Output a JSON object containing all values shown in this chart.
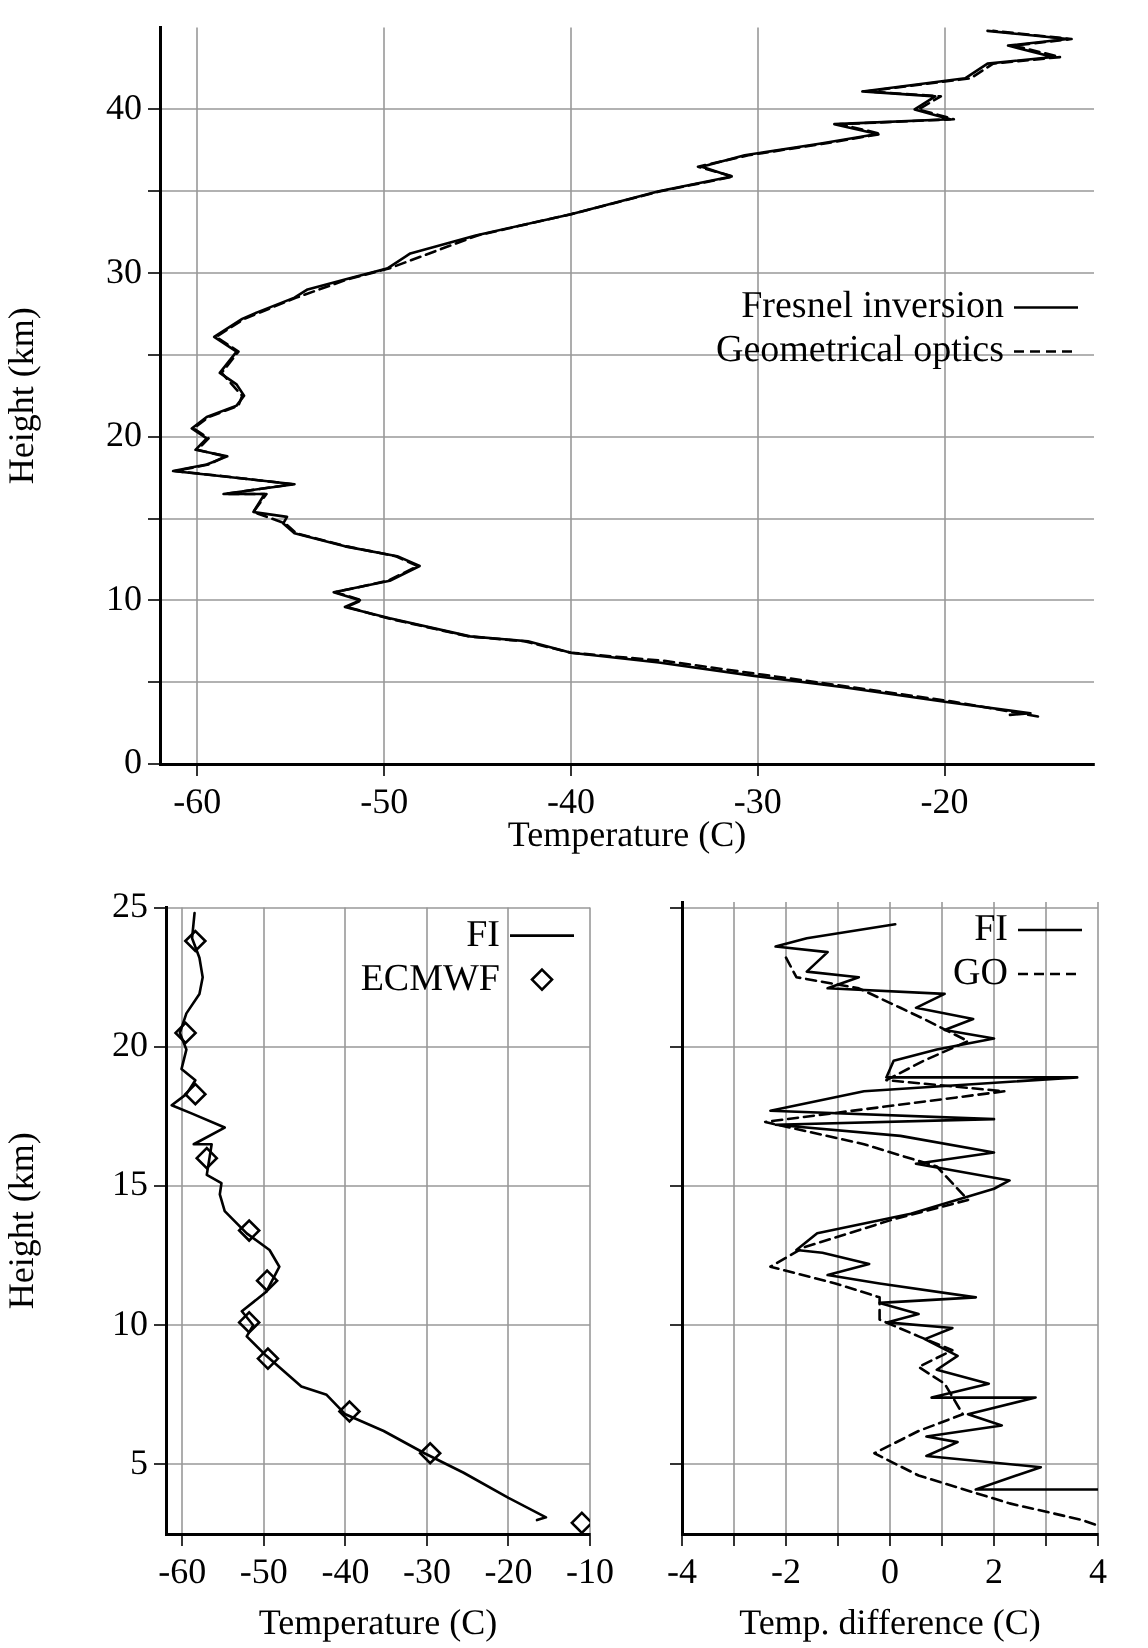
{
  "chart_data": [
    {
      "type": "line",
      "xlabel": "Temperature (C)",
      "ylabel": "Height (km)",
      "xlim": [
        -62,
        -12
      ],
      "xticks": [
        -60,
        -50,
        -40,
        -30,
        -20
      ],
      "ylim": [
        0,
        45
      ],
      "yticks": [
        0,
        {
          "value": 5,
          "label": null
        },
        10,
        {
          "value": 15,
          "label": null
        },
        20,
        {
          "value": 25,
          "label": null
        },
        30,
        {
          "value": 35,
          "label": null
        },
        40
      ],
      "grid": true,
      "legend": "right",
      "series": [
        {
          "name": "Fresnel inversion",
          "color": "#000000",
          "line_style": "solid",
          "x": [
            -16.5,
            -15.4,
            -20,
            -25.5,
            -30.3,
            -35.3,
            -40,
            -42.3,
            -45.4,
            -49.7,
            -52.1,
            -51.3,
            -52.7,
            -49.7,
            -48.1,
            -49.3,
            -52.1,
            -54.8,
            -55.4,
            -55.2,
            -57,
            -56.4,
            -58.6,
            -54.8,
            -58.8,
            -61.3,
            -59.5,
            -58.4,
            -60.1,
            -59.5,
            -60.3,
            -59.5,
            -57.9,
            -57.5,
            -57.9,
            -58.8,
            -57.9,
            -59.1,
            -57.6,
            -56.8,
            -54.8,
            -54.1,
            -52.1,
            -49.8,
            -48.6,
            -45.1,
            -40,
            -35.3,
            -31.4,
            -33,
            -30.7,
            -26.7,
            -23.6,
            -25.9,
            -19.7,
            -21.6,
            -20.5,
            -24.4,
            -18.9,
            -17.7,
            -14.2,
            -16.6,
            -13.4,
            -17.7
          ],
          "values": [
            3.0,
            3.1,
            3.8,
            4.7,
            5.4,
            6.2,
            6.8,
            7.5,
            7.8,
            8.9,
            9.6,
            10.0,
            10.5,
            11.2,
            12.1,
            12.7,
            13.3,
            14.1,
            14.7,
            15.1,
            15.4,
            16.5,
            16.5,
            17.1,
            17.6,
            17.9,
            18.3,
            18.8,
            19.2,
            19.9,
            20.5,
            21.2,
            21.9,
            22.5,
            23.2,
            23.9,
            25.2,
            26.1,
            27.2,
            27.6,
            28.5,
            29.0,
            29.6,
            30.3,
            31.2,
            32.3,
            33.6,
            35.0,
            35.9,
            36.5,
            37.2,
            37.9,
            38.5,
            39.1,
            39.4,
            40.0,
            40.8,
            41.1,
            41.9,
            42.8,
            43.2,
            43.9,
            44.3,
            44.8
          ]
        },
        {
          "name": "Geometrical optics",
          "color": "#000000",
          "line_style": "dashed",
          "x": [
            -15,
            -19.5,
            -25,
            -30,
            -35,
            -40,
            -42.5,
            -45.5,
            -49.8,
            -52,
            -51.2,
            -52.6,
            -49.8,
            -48.2,
            -49.4,
            -52,
            -54.7,
            -55.3,
            -57,
            -56.3,
            -58.5,
            -54.9,
            -58.7,
            -61.2,
            -59.4,
            -58.5,
            -60,
            -59.4,
            -60.2,
            -59.4,
            -57.8,
            -57.6,
            -58.7,
            -57.8,
            -59,
            -57.5,
            -54.7,
            -52,
            -49.7,
            -45,
            -40,
            -35.2,
            -31.3,
            -33.2,
            -30.5,
            -26.5,
            -23.4,
            -25.6,
            -19.5,
            -21.4,
            -20.2,
            -24.2,
            -18.6,
            -17.4,
            -13.8,
            -16.3,
            -13.2,
            -17.4
          ],
          "values": [
            2.9,
            3.8,
            4.7,
            5.5,
            6.3,
            6.8,
            7.5,
            7.8,
            8.9,
            9.6,
            10.0,
            10.5,
            11.2,
            12.1,
            12.7,
            13.3,
            14.1,
            14.7,
            15.4,
            16.5,
            16.5,
            17.1,
            17.6,
            17.9,
            18.3,
            18.8,
            19.2,
            19.9,
            20.5,
            21.2,
            21.9,
            22.5,
            23.9,
            25.2,
            26.1,
            27.2,
            28.5,
            29.6,
            30.3,
            32.3,
            33.6,
            35.0,
            35.9,
            36.5,
            37.2,
            37.9,
            38.5,
            39.1,
            39.4,
            40.0,
            40.8,
            41.1,
            41.9,
            42.8,
            43.2,
            43.9,
            44.3,
            44.8
          ]
        }
      ]
    },
    {
      "type": "line",
      "xlabel": "Temperature (C)",
      "ylabel": "Height (km)",
      "xlim": [
        -62,
        -10
      ],
      "xticks": [
        -60,
        -50,
        -40,
        -30,
        -20,
        -10
      ],
      "ylim": [
        2.5,
        25
      ],
      "yticks": [
        5,
        10,
        15,
        20,
        25
      ],
      "grid": true,
      "legend": "top right",
      "series": [
        {
          "name": "FI",
          "color": "#000000",
          "line_style": "solid",
          "x": [
            -16.5,
            -15.4,
            -20,
            -25.5,
            -30.3,
            -35.3,
            -40,
            -42.3,
            -45.4,
            -49.7,
            -52.1,
            -51.3,
            -52.7,
            -49.7,
            -48.1,
            -49.3,
            -52.1,
            -54.8,
            -55.4,
            -55.2,
            -57,
            -56.4,
            -58.6,
            -54.8,
            -58.8,
            -61.3,
            -59.5,
            -58.4,
            -60.1,
            -59.5,
            -60.3,
            -59.5,
            -57.9,
            -57.5,
            -57.9,
            -58.8,
            -58.5
          ],
          "values": [
            3.0,
            3.1,
            3.8,
            4.7,
            5.4,
            6.2,
            6.8,
            7.5,
            7.8,
            8.9,
            9.6,
            10.0,
            10.5,
            11.2,
            12.1,
            12.7,
            13.3,
            14.1,
            14.7,
            15.1,
            15.4,
            16.5,
            16.5,
            17.1,
            17.6,
            17.9,
            18.3,
            18.8,
            19.2,
            19.9,
            20.5,
            21.2,
            21.9,
            22.5,
            23.2,
            23.9,
            24.8
          ]
        },
        {
          "name": "ECMWF",
          "type": "scatter",
          "marker": "diamond",
          "color": "#000000",
          "x": [
            -58.4,
            -59.6,
            -58.4,
            -57,
            -51.8,
            -49.6,
            -51.8,
            -49.5,
            -39.5,
            -29.6,
            -11
          ],
          "values": [
            23.8,
            20.5,
            18.3,
            16.0,
            13.4,
            11.6,
            10.1,
            8.8,
            6.9,
            5.4,
            2.9
          ]
        }
      ]
    },
    {
      "type": "line",
      "xlabel": "Temp. difference (C)",
      "xlim": [
        -4,
        4
      ],
      "xticks": [
        -4,
        {
          "value": -3,
          "label": null
        },
        -2,
        {
          "value": -1,
          "label": null
        },
        0,
        {
          "value": 1,
          "label": null
        },
        2,
        {
          "value": 3,
          "label": null
        },
        4
      ],
      "ylim": [
        2.5,
        25.2
      ],
      "yticks": [
        5,
        10,
        15,
        20,
        25
      ],
      "tick_labels": "x",
      "grid": true,
      "legend": "top right",
      "series": [
        {
          "name": "FI",
          "color": "#000000",
          "line_style": "solid",
          "x": [
            0.1,
            -1.6,
            -2.2,
            -1.2,
            -1.6,
            -0.6,
            -1.2,
            1.05,
            0.5,
            1.6,
            1.05,
            2.0,
            0.9,
            0.07,
            -0.07,
            3.6,
            -0.5,
            -2.3,
            2.0,
            -2.2,
            0.2,
            2.0,
            0.5,
            2.3,
            2.0,
            0.4,
            -1.4,
            -1.8,
            -1.3,
            -0.4,
            -1.2,
            -0.2,
            1.65,
            -0.2,
            0.55,
            -0.06,
            1.2,
            0.67,
            1.3,
            0.9,
            1.9,
            0.8,
            2.8,
            1.5,
            2.15,
            0.7,
            1.3,
            0.7,
            2.9,
            1.65,
            4.0
          ],
          "values": [
            24.4,
            23.9,
            23.6,
            23.4,
            22.7,
            22.5,
            22.1,
            21.9,
            21.4,
            21.0,
            20.6,
            20.3,
            19.9,
            19.5,
            18.9,
            18.9,
            18.4,
            17.7,
            17.4,
            17.2,
            16.8,
            16.2,
            15.8,
            15.2,
            14.9,
            14.0,
            13.3,
            12.7,
            12.6,
            12.2,
            11.8,
            11.5,
            11.0,
            10.8,
            10.4,
            10.1,
            9.9,
            9.5,
            8.9,
            8.4,
            7.9,
            7.4,
            7.4,
            6.8,
            6.4,
            6.0,
            5.8,
            5.3,
            4.9,
            4.1,
            4.1
          ]
        },
        {
          "name": "GO",
          "color": "#000000",
          "line_style": "dashed",
          "x": [
            -2.0,
            -1.8,
            -0.6,
            0.2,
            0.65,
            1.5,
            0.65,
            -0.07,
            2.2,
            -2.4,
            -0.5,
            0.9,
            1.5,
            0.06,
            -1.65,
            -2.3,
            -1.05,
            -0.2,
            -0.2,
            0.55,
            1.2,
            0.55,
            1.05,
            1.4,
            0.55,
            -0.3,
            0.55,
            2.3,
            3.7,
            4.0
          ],
          "values": [
            23.2,
            22.5,
            22.1,
            21.4,
            21.0,
            20.2,
            19.5,
            18.8,
            18.4,
            17.3,
            16.5,
            15.7,
            14.5,
            13.8,
            12.8,
            12.1,
            11.5,
            11.0,
            10.2,
            9.6,
            9.1,
            8.5,
            7.9,
            6.8,
            6.2,
            5.4,
            4.6,
            3.6,
            3.0,
            2.8
          ]
        }
      ]
    }
  ]
}
